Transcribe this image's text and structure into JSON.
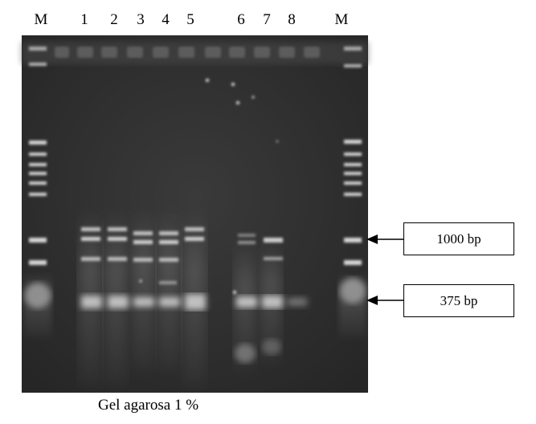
{
  "lanes": [
    "M",
    "1",
    "2",
    "3",
    "4",
    "5",
    "6",
    "7",
    "8",
    "M"
  ],
  "markers": [
    {
      "label": "1000 bp"
    },
    {
      "label": "375 bp"
    }
  ],
  "caption": "Gel agarosa 1 %"
}
